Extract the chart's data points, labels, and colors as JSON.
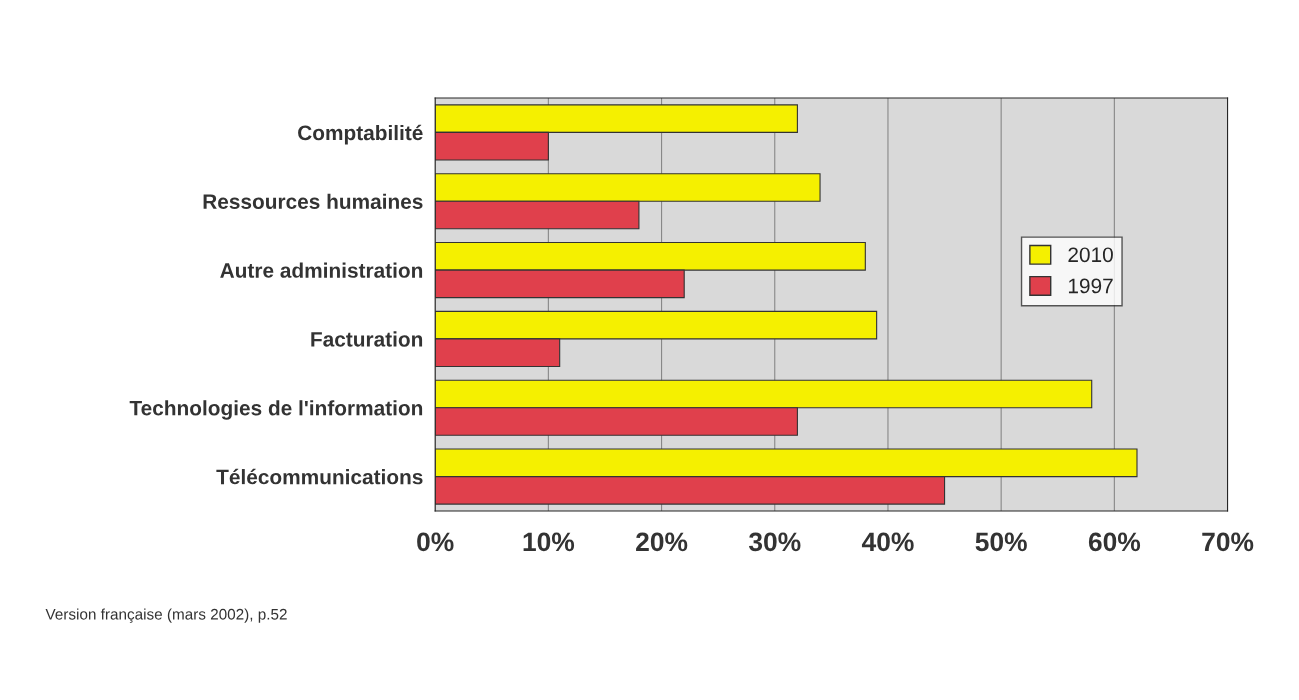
{
  "chart_data": {
    "type": "bar",
    "orientation": "horizontal",
    "categories": [
      "Comptabilité",
      "Ressources humaines",
      "Autre administration",
      "Facturation",
      "Technologies de l'information",
      "Télécommunications"
    ],
    "series": [
      {
        "name": "2010",
        "color": "#f5f000",
        "values": [
          32,
          34,
          38,
          39,
          58,
          62
        ]
      },
      {
        "name": "1997",
        "color": "#e0404c",
        "values": [
          10,
          18,
          22,
          11,
          32,
          45
        ]
      }
    ],
    "xlim": [
      0,
      70
    ],
    "xticks": [
      {
        "value": 0,
        "label": "0%"
      },
      {
        "value": 10,
        "label": "10%"
      },
      {
        "value": 20,
        "label": "20%"
      },
      {
        "value": 30,
        "label": "30%"
      },
      {
        "value": 40,
        "label": "40%"
      },
      {
        "value": 50,
        "label": "50%"
      },
      {
        "value": 60,
        "label": "60%"
      },
      {
        "value": 70,
        "label": "70%"
      }
    ],
    "grid": "x",
    "legend": "right",
    "annotations": [
      "Version française (mars 2002), p.52"
    ]
  }
}
